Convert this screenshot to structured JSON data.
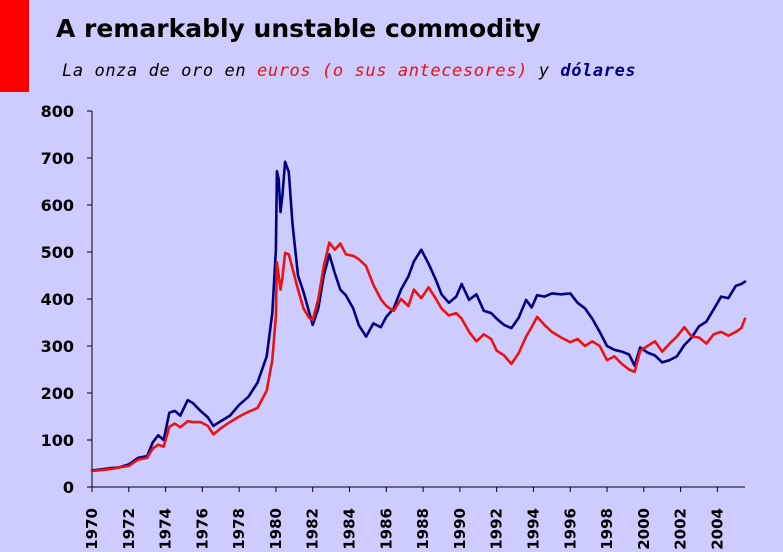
{
  "slide": {
    "title": "A remarkably unstable commodity",
    "subtitle": {
      "prefix": "La onza de oro en ",
      "euros": "euros (o sus antecesores)",
      "middle": " y ",
      "dollars": "dólares"
    },
    "accent_color": "#FF0000",
    "background_color": "#CCCCFF"
  },
  "chart_data": {
    "type": "line",
    "title": "",
    "xlabel": "",
    "ylabel": "",
    "xlim": [
      1970,
      2005.5
    ],
    "ylim": [
      0,
      800
    ],
    "y_ticks": [
      0,
      100,
      200,
      300,
      400,
      500,
      600,
      700,
      800
    ],
    "x_ticks": [
      "1970",
      "1972",
      "1974",
      "1976",
      "1978",
      "1980",
      "1982",
      "1984",
      "1986",
      "1988",
      "1990",
      "1992",
      "1994",
      "1996",
      "1998",
      "2000",
      "2002",
      "2004"
    ],
    "grid": false,
    "legend": "none",
    "series": [
      {
        "color": "#000080",
        "points": [
          [
            1970.0,
            35
          ],
          [
            1971.0,
            40
          ],
          [
            1971.5,
            42
          ],
          [
            1972.0,
            48
          ],
          [
            1972.5,
            62
          ],
          [
            1973.0,
            66
          ],
          [
            1973.3,
            95
          ],
          [
            1973.6,
            110
          ],
          [
            1973.9,
            100
          ],
          [
            1974.2,
            158
          ],
          [
            1974.5,
            162
          ],
          [
            1974.8,
            152
          ],
          [
            1975.2,
            185
          ],
          [
            1975.5,
            178
          ],
          [
            1975.9,
            162
          ],
          [
            1976.3,
            148
          ],
          [
            1976.6,
            130
          ],
          [
            1977.0,
            140
          ],
          [
            1977.5,
            152
          ],
          [
            1978.0,
            175
          ],
          [
            1978.5,
            192
          ],
          [
            1979.0,
            222
          ],
          [
            1979.5,
            278
          ],
          [
            1979.8,
            370
          ],
          [
            1980.0,
            505
          ],
          [
            1980.05,
            672
          ],
          [
            1980.15,
            655
          ],
          [
            1980.25,
            585
          ],
          [
            1980.35,
            620
          ],
          [
            1980.5,
            692
          ],
          [
            1980.7,
            670
          ],
          [
            1980.9,
            560
          ],
          [
            1981.2,
            450
          ],
          [
            1981.5,
            415
          ],
          [
            1981.8,
            372
          ],
          [
            1982.0,
            345
          ],
          [
            1982.3,
            380
          ],
          [
            1982.6,
            450
          ],
          [
            1982.9,
            495
          ],
          [
            1983.2,
            455
          ],
          [
            1983.5,
            420
          ],
          [
            1983.8,
            408
          ],
          [
            1984.2,
            380
          ],
          [
            1984.5,
            345
          ],
          [
            1984.9,
            320
          ],
          [
            1985.3,
            348
          ],
          [
            1985.7,
            340
          ],
          [
            1986.0,
            362
          ],
          [
            1986.4,
            380
          ],
          [
            1986.8,
            420
          ],
          [
            1987.2,
            448
          ],
          [
            1987.5,
            480
          ],
          [
            1987.9,
            505
          ],
          [
            1988.3,
            475
          ],
          [
            1988.7,
            440
          ],
          [
            1989.0,
            410
          ],
          [
            1989.4,
            392
          ],
          [
            1989.8,
            405
          ],
          [
            1990.1,
            432
          ],
          [
            1990.5,
            398
          ],
          [
            1990.9,
            410
          ],
          [
            1991.3,
            375
          ],
          [
            1991.7,
            370
          ],
          [
            1992.0,
            358
          ],
          [
            1992.4,
            345
          ],
          [
            1992.8,
            338
          ],
          [
            1993.2,
            360
          ],
          [
            1993.6,
            398
          ],
          [
            1993.9,
            382
          ],
          [
            1994.2,
            408
          ],
          [
            1994.6,
            405
          ],
          [
            1995.0,
            412
          ],
          [
            1995.5,
            410
          ],
          [
            1996.0,
            412
          ],
          [
            1996.4,
            392
          ],
          [
            1996.8,
            380
          ],
          [
            1997.2,
            358
          ],
          [
            1997.6,
            330
          ],
          [
            1998.0,
            300
          ],
          [
            1998.4,
            292
          ],
          [
            1998.8,
            288
          ],
          [
            1999.2,
            282
          ],
          [
            1999.5,
            258
          ],
          [
            1999.8,
            297
          ],
          [
            2000.2,
            286
          ],
          [
            2000.6,
            280
          ],
          [
            2001.0,
            265
          ],
          [
            2001.4,
            270
          ],
          [
            2001.8,
            278
          ],
          [
            2002.2,
            302
          ],
          [
            2002.6,
            318
          ],
          [
            2003.0,
            342
          ],
          [
            2003.4,
            352
          ],
          [
            2003.8,
            378
          ],
          [
            2004.2,
            405
          ],
          [
            2004.6,
            402
          ],
          [
            2005.0,
            428
          ],
          [
            2005.3,
            432
          ],
          [
            2005.5,
            437
          ]
        ]
      },
      {
        "color": "#EE1111",
        "points": [
          [
            1970.0,
            34
          ],
          [
            1971.0,
            38
          ],
          [
            1971.5,
            42
          ],
          [
            1972.0,
            45
          ],
          [
            1972.5,
            58
          ],
          [
            1973.0,
            62
          ],
          [
            1973.3,
            82
          ],
          [
            1973.6,
            90
          ],
          [
            1973.9,
            86
          ],
          [
            1974.2,
            128
          ],
          [
            1974.5,
            135
          ],
          [
            1974.8,
            127
          ],
          [
            1975.2,
            140
          ],
          [
            1975.5,
            138
          ],
          [
            1975.9,
            138
          ],
          [
            1976.3,
            130
          ],
          [
            1976.6,
            112
          ],
          [
            1977.0,
            125
          ],
          [
            1977.5,
            138
          ],
          [
            1978.0,
            150
          ],
          [
            1978.5,
            160
          ],
          [
            1979.0,
            168
          ],
          [
            1979.5,
            205
          ],
          [
            1979.8,
            270
          ],
          [
            1980.0,
            365
          ],
          [
            1980.05,
            478
          ],
          [
            1980.15,
            450
          ],
          [
            1980.25,
            420
          ],
          [
            1980.35,
            445
          ],
          [
            1980.5,
            498
          ],
          [
            1980.7,
            495
          ],
          [
            1980.9,
            465
          ],
          [
            1981.2,
            420
          ],
          [
            1981.5,
            380
          ],
          [
            1981.8,
            360
          ],
          [
            1982.0,
            355
          ],
          [
            1982.3,
            400
          ],
          [
            1982.6,
            470
          ],
          [
            1982.9,
            520
          ],
          [
            1983.2,
            505
          ],
          [
            1983.5,
            518
          ],
          [
            1983.8,
            495
          ],
          [
            1984.2,
            492
          ],
          [
            1984.5,
            485
          ],
          [
            1984.9,
            470
          ],
          [
            1985.3,
            430
          ],
          [
            1985.7,
            400
          ],
          [
            1986.0,
            385
          ],
          [
            1986.4,
            375
          ],
          [
            1986.8,
            400
          ],
          [
            1987.2,
            385
          ],
          [
            1987.5,
            420
          ],
          [
            1987.9,
            402
          ],
          [
            1988.3,
            425
          ],
          [
            1988.7,
            400
          ],
          [
            1989.0,
            380
          ],
          [
            1989.4,
            365
          ],
          [
            1989.8,
            370
          ],
          [
            1990.1,
            358
          ],
          [
            1990.5,
            330
          ],
          [
            1990.9,
            310
          ],
          [
            1991.3,
            325
          ],
          [
            1991.7,
            315
          ],
          [
            1992.0,
            290
          ],
          [
            1992.4,
            280
          ],
          [
            1992.8,
            262
          ],
          [
            1993.2,
            285
          ],
          [
            1993.6,
            320
          ],
          [
            1993.9,
            340
          ],
          [
            1994.2,
            362
          ],
          [
            1994.6,
            345
          ],
          [
            1995.0,
            330
          ],
          [
            1995.5,
            318
          ],
          [
            1996.0,
            308
          ],
          [
            1996.4,
            315
          ],
          [
            1996.8,
            300
          ],
          [
            1997.2,
            310
          ],
          [
            1997.6,
            300
          ],
          [
            1998.0,
            270
          ],
          [
            1998.4,
            278
          ],
          [
            1998.8,
            262
          ],
          [
            1999.2,
            250
          ],
          [
            1999.5,
            245
          ],
          [
            1999.8,
            290
          ],
          [
            2000.2,
            300
          ],
          [
            2000.6,
            310
          ],
          [
            2001.0,
            288
          ],
          [
            2001.4,
            305
          ],
          [
            2001.8,
            320
          ],
          [
            2002.2,
            340
          ],
          [
            2002.6,
            320
          ],
          [
            2003.0,
            318
          ],
          [
            2003.4,
            305
          ],
          [
            2003.8,
            325
          ],
          [
            2004.2,
            330
          ],
          [
            2004.6,
            322
          ],
          [
            2005.0,
            330
          ],
          [
            2005.3,
            338
          ],
          [
            2005.5,
            358
          ]
        ]
      }
    ]
  }
}
